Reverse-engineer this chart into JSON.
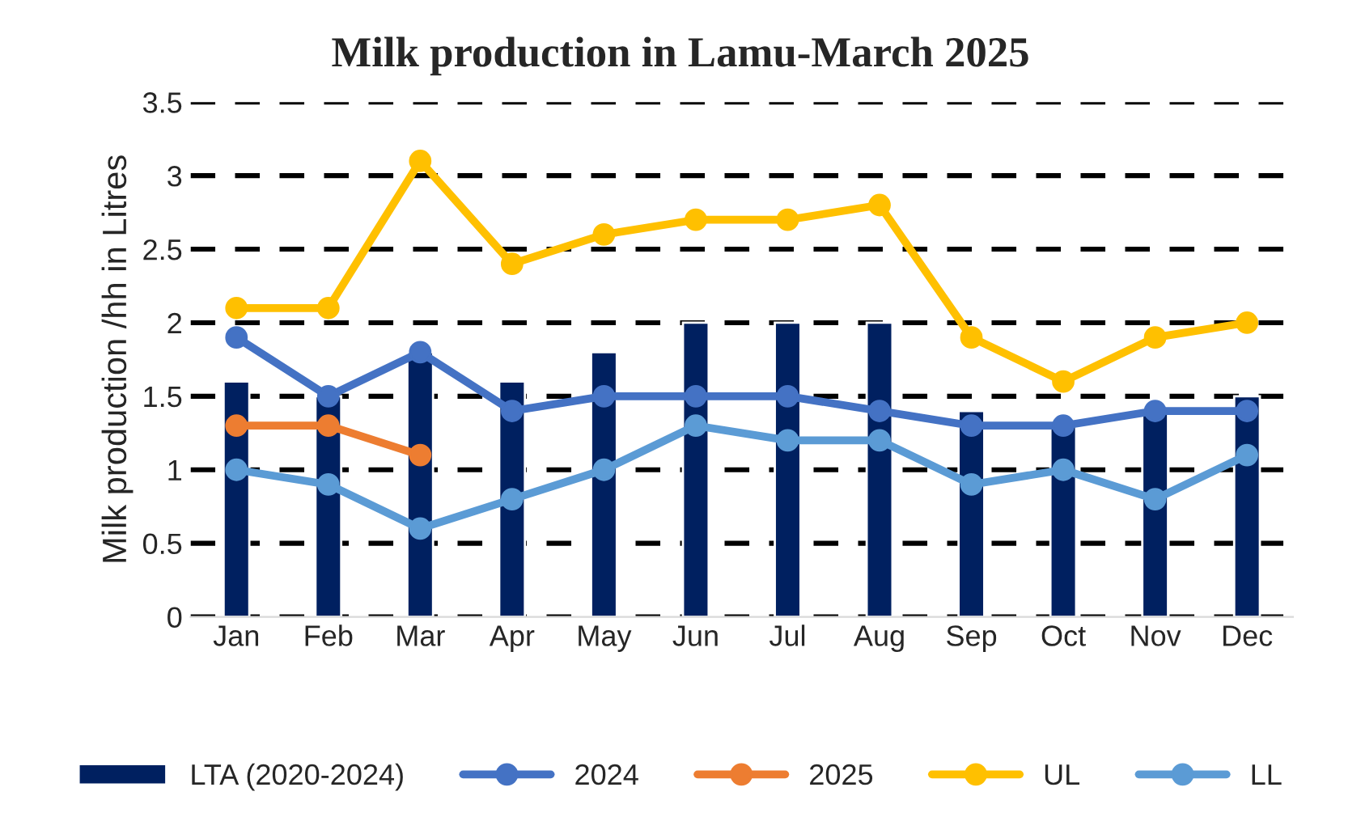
{
  "chart_data": {
    "type": "bar",
    "title": "Milk production in Lamu-March 2025",
    "ylabel": "Milk production /hh in Litres",
    "categories": [
      "Jan",
      "Feb",
      "Mar",
      "Apr",
      "May",
      "Jun",
      "Jul",
      "Aug",
      "Sep",
      "Oct",
      "Nov",
      "Dec"
    ],
    "series": [
      {
        "name": "LTA (2020-2024)",
        "color": "#002060",
        "values": [
          1.6,
          1.5,
          1.8,
          1.6,
          1.8,
          2.0,
          2.0,
          2.0,
          1.4,
          1.3,
          1.4,
          1.5
        ]
      },
      {
        "name": "2024",
        "type": "line",
        "color": "#4472c4",
        "values": [
          1.9,
          1.5,
          1.8,
          1.4,
          1.5,
          1.5,
          1.5,
          1.4,
          1.3,
          1.3,
          1.4,
          1.4
        ]
      },
      {
        "name": "2025",
        "type": "line",
        "color": "#ed7d31",
        "values": [
          1.3,
          1.3,
          1.1,
          null,
          null,
          null,
          null,
          null,
          null,
          null,
          null,
          null
        ]
      },
      {
        "name": "UL",
        "type": "line",
        "color": "#ffc000",
        "values": [
          2.1,
          2.1,
          3.1,
          2.4,
          2.6,
          2.7,
          2.7,
          2.8,
          1.9,
          1.6,
          1.9,
          2.0
        ]
      },
      {
        "name": "LL",
        "type": "line",
        "color": "#5b9bd5",
        "values": [
          1.0,
          0.9,
          0.6,
          0.8,
          1.0,
          1.3,
          1.2,
          1.2,
          0.9,
          1.0,
          0.8,
          1.1
        ]
      }
    ],
    "ylim": [
      0,
      3.5
    ],
    "yticks": [
      0,
      0.5,
      1,
      1.5,
      2,
      2.5,
      3,
      3.5
    ],
    "grid": "y",
    "legend": "bottom",
    "marker": "circle",
    "line_style": "solid"
  }
}
